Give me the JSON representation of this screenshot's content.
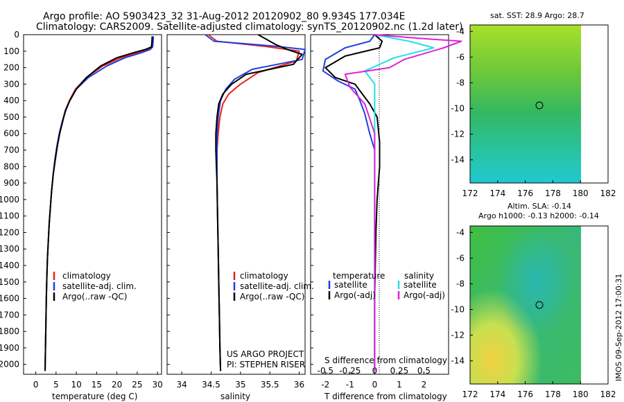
{
  "header": {
    "line1": "Argo profile: AO 5903423_32 31-Aug-2012 20120902_80 9.934S 177.034E",
    "line2": "Climatology: CARS2009. Satellite-adjusted climatology: synTS_20120902.nc (1.2d later)"
  },
  "colors": {
    "climatology": "#e8201a",
    "satellite": "#1f3ee0",
    "argo": "#000000",
    "sal_sat": "#22e0e8",
    "sal_argo": "#e020d8"
  },
  "depth_axis": {
    "ticks": [
      0,
      100,
      200,
      300,
      400,
      500,
      600,
      700,
      800,
      900,
      1000,
      1100,
      1200,
      1300,
      1400,
      1500,
      1600,
      1700,
      1800,
      1900,
      2000
    ],
    "range": [
      0,
      2060
    ]
  },
  "panels": {
    "temperature": {
      "xlabel": "temperature (deg C)",
      "xlim": [
        -3,
        31
      ],
      "xticks": [
        0,
        5,
        10,
        15,
        20,
        25,
        30
      ],
      "legend": [
        "climatology",
        "satellite-adj. clim.",
        "Argo(..raw -QC)"
      ]
    },
    "salinity": {
      "xlabel": "salinity",
      "xlim": [
        33.75,
        36.1
      ],
      "xticks": [
        "34",
        "34.5",
        "35",
        "35.5",
        "36"
      ],
      "legend": [
        "climatology",
        "satellite-adj. clim.",
        "Argo(..raw -QC)"
      ],
      "note1": "US ARGO PROJECT",
      "note2": "PI: STEPHEN RISER"
    },
    "difference": {
      "xlabel_top": "S difference from climatology",
      "xlabel_bottom": "T difference from climatology",
      "top_ticks": [
        "-0.5",
        "-0.25",
        "0",
        "0.25",
        "0.5"
      ],
      "bottom_ticks": [
        "-2",
        "-1",
        "0",
        "1",
        "2"
      ],
      "legend_t_title": "temperature",
      "legend_s_title": "salinity",
      "legend_t": [
        "satellite",
        "Argo(-adj)"
      ],
      "legend_s": [
        "satellite",
        "Argo(-adj)"
      ]
    }
  },
  "maps": {
    "sst_title": "sat. SST: 28.9 Argo: 28.7",
    "sla_title1": "Altim. SLA: -0.14",
    "sla_title2": "Argo h1000: -0.13 h2000: -0.14",
    "yticks": [
      "-4",
      "-6",
      "-8",
      "-10",
      "-12",
      "-14"
    ],
    "xticks": [
      "172",
      "174",
      "176",
      "178",
      "180",
      "182"
    ],
    "float_position": {
      "lon": 177.03,
      "lat": -9.93
    }
  },
  "footer": {
    "stamp": "IMOS 09-Sep-2012 17:00:31"
  },
  "chart_data": [
    {
      "type": "line",
      "title": "",
      "xlabel": "temperature (deg C)",
      "ylabel": "",
      "xlim": [
        -3,
        31
      ],
      "ylim": [
        2060,
        0
      ],
      "series": [
        {
          "name": "climatology",
          "color": "#e8201a",
          "x": [
            28.8,
            28.7,
            28.5,
            27.5,
            25.0,
            21.0,
            16.5,
            12.5,
            9.8,
            8.3,
            7.3,
            6.5,
            5.8,
            5.2,
            4.7,
            4.3,
            3.9,
            3.6,
            3.3,
            3.1,
            2.9,
            2.75,
            2.6,
            2.5,
            2.4,
            2.3
          ],
          "y": [
            10,
            50,
            75,
            90,
            110,
            140,
            190,
            260,
            330,
            400,
            460,
            530,
            600,
            680,
            760,
            850,
            950,
            1050,
            1150,
            1250,
            1350,
            1450,
            1600,
            1750,
            1900,
            2040
          ]
        },
        {
          "name": "satellite-adj. clim.",
          "color": "#1f3ee0",
          "x": [
            29.0,
            28.9,
            28.8,
            28.2,
            26.0,
            22.0,
            17.5,
            13.0,
            10.0,
            8.4,
            7.4,
            6.5,
            5.8,
            5.2,
            4.7,
            4.3,
            3.9,
            3.6,
            3.3,
            3.1,
            2.9,
            2.75,
            2.6,
            2.5,
            2.4,
            2.3
          ],
          "y": [
            10,
            50,
            75,
            90,
            110,
            140,
            190,
            260,
            330,
            400,
            460,
            530,
            600,
            680,
            760,
            850,
            950,
            1050,
            1150,
            1250,
            1350,
            1450,
            1600,
            1750,
            1900,
            2040
          ]
        },
        {
          "name": "Argo(..raw -QC)",
          "color": "#000000",
          "x": [
            28.7,
            28.6,
            28.5,
            27.0,
            24.0,
            20.0,
            16.0,
            12.5,
            10.0,
            8.4,
            7.3,
            6.6,
            5.9,
            5.3,
            4.8,
            4.3,
            3.9,
            3.6,
            3.3,
            3.1,
            2.9,
            2.75,
            2.6,
            2.5,
            2.4,
            2.3
          ],
          "y": [
            10,
            50,
            75,
            90,
            110,
            140,
            190,
            260,
            330,
            400,
            460,
            530,
            600,
            680,
            760,
            850,
            950,
            1050,
            1150,
            1250,
            1350,
            1450,
            1600,
            1750,
            1900,
            2040
          ]
        }
      ]
    },
    {
      "type": "line",
      "title": "",
      "xlabel": "salinity",
      "ylabel": "",
      "xlim": [
        33.75,
        36.1
      ],
      "ylim": [
        2060,
        0
      ],
      "series": [
        {
          "name": "climatology",
          "color": "#e8201a",
          "x": [
            34.45,
            34.6,
            35.4,
            36.0,
            35.95,
            35.3,
            35.0,
            34.8,
            34.7,
            34.65,
            34.62,
            34.6,
            34.6,
            34.6,
            34.61,
            34.62,
            34.63,
            34.64,
            34.65,
            34.66
          ],
          "y": [
            0,
            40,
            70,
            100,
            160,
            230,
            300,
            360,
            420,
            500,
            600,
            700,
            800,
            900,
            1100,
            1300,
            1500,
            1700,
            1900,
            2040
          ]
        },
        {
          "name": "satellite-adj. clim.",
          "color": "#1f3ee0",
          "x": [
            34.4,
            34.55,
            35.6,
            36.1,
            36.05,
            35.2,
            34.9,
            34.75,
            34.66,
            34.62,
            34.6,
            34.6,
            34.6,
            34.6,
            34.61,
            34.62,
            34.63,
            34.64,
            34.65,
            34.66
          ],
          "y": [
            0,
            40,
            70,
            90,
            150,
            210,
            270,
            330,
            400,
            500,
            600,
            700,
            800,
            900,
            1100,
            1300,
            1500,
            1700,
            1900,
            2040
          ]
        },
        {
          "name": "Argo(..raw -QC)",
          "color": "#000000",
          "x": [
            35.3,
            35.6,
            35.8,
            36.05,
            35.9,
            35.1,
            34.85,
            34.7,
            34.63,
            34.6,
            34.58,
            34.58,
            34.59,
            34.6,
            34.61,
            34.62,
            34.63,
            34.64,
            34.65,
            34.66
          ],
          "y": [
            0,
            60,
            90,
            120,
            180,
            240,
            300,
            360,
            420,
            500,
            600,
            700,
            800,
            900,
            1100,
            1300,
            1500,
            1700,
            1900,
            2040
          ]
        }
      ]
    },
    {
      "type": "line",
      "title": "",
      "xlabel": "T difference from climatology",
      "ylabel": "",
      "xlim": [
        -2.6,
        3.0
      ],
      "ylim": [
        2060,
        0
      ],
      "series": [
        {
          "name": "temperature satellite",
          "color": "#1f3ee0",
          "x": [
            0.0,
            -0.2,
            -1.2,
            -2.0,
            -2.1,
            -1.5,
            -0.8,
            -0.6,
            -0.4,
            -0.2,
            0.0,
            0.0,
            0.0,
            0.0,
            0.0
          ],
          "y": [
            0,
            40,
            80,
            150,
            220,
            280,
            330,
            400,
            480,
            600,
            700,
            900,
            1200,
            1600,
            2040
          ]
        },
        {
          "name": "temperature Argo(-adj)",
          "color": "#000000",
          "x": [
            0.0,
            0.3,
            0.2,
            -1.2,
            -2.0,
            -1.6,
            -0.8,
            -0.5,
            -0.2,
            0.1,
            0.2,
            0.2,
            0.1,
            0.05,
            0.0,
            0.0
          ],
          "y": [
            0,
            40,
            80,
            130,
            200,
            260,
            300,
            360,
            420,
            500,
            650,
            800,
            1000,
            1200,
            1600,
            2040
          ]
        },
        {
          "name": "salinity satellite",
          "color": "#22e0e8",
          "x": [
            0.0,
            0.35,
            0.6,
            0.2,
            -0.1,
            0.0,
            0.0,
            0.0,
            0.0,
            0.0
          ],
          "y": [
            0,
            40,
            80,
            140,
            220,
            300,
            500,
            900,
            1400,
            2040
          ]
        },
        {
          "name": "salinity Argo(-adj)",
          "color": "#e020d8",
          "x": [
            0.0,
            0.4,
            0.88,
            0.7,
            0.3,
            0.15,
            -0.3,
            -0.25,
            -0.1,
            0.0,
            0.0,
            0.0
          ],
          "y": [
            0,
            20,
            40,
            80,
            150,
            200,
            240,
            320,
            420,
            600,
            1100,
            2040
          ]
        }
      ]
    }
  ]
}
